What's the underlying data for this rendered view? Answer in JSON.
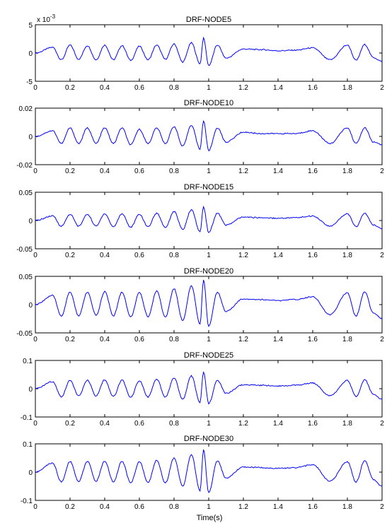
{
  "figure": {
    "xlabel": "Time(s)",
    "line_color": "#0000ff"
  },
  "chart_data": [
    {
      "type": "line",
      "title": "DRF-NODE5",
      "exponent_label": "x 10",
      "exponent_value": "-3",
      "xlim": [
        0,
        2
      ],
      "ylim": [
        -0.005,
        0.005
      ],
      "x_ticks": [
        "0",
        "0.2",
        "0.4",
        "0.6",
        "0.8",
        "1",
        "1.2",
        "1.4",
        "1.6",
        "1.8",
        "2"
      ],
      "y_ticks": [
        {
          "value": 0.005,
          "label": "5"
        },
        {
          "value": 0,
          "label": "0"
        },
        {
          "value": -0.005,
          "label": "-5"
        }
      ],
      "series": [
        {
          "x": [
            0,
            0.1,
            0.15,
            0.2,
            0.25,
            0.3,
            0.35,
            0.4,
            0.45,
            0.5,
            0.55,
            0.6,
            0.65,
            0.7,
            0.75,
            0.8,
            0.85,
            0.9,
            0.95,
            0.97,
            1.0,
            1.05,
            1.1,
            1.2,
            1.3,
            1.4,
            1.5,
            1.6,
            1.7,
            1.8,
            1.85,
            1.9,
            1.95,
            2.0
          ],
          "y": [
            0,
            0.001,
            -0.0012,
            0.0014,
            -0.0011,
            0.0013,
            -0.0012,
            0.0014,
            -0.0012,
            0.0013,
            -0.0013,
            0.0012,
            -0.0012,
            0.0014,
            -0.0011,
            0.0016,
            -0.0016,
            0.0018,
            -0.0019,
            0.0026,
            -0.0022,
            0.0014,
            -0.0009,
            0.0007,
            0.0006,
            0.0004,
            0.0005,
            0.0009,
            -0.0012,
            0.0014,
            -0.0013,
            0.0015,
            -0.0008,
            -0.0015
          ]
        }
      ]
    },
    {
      "type": "line",
      "title": "DRF-NODE10",
      "xlim": [
        0,
        2
      ],
      "ylim": [
        -0.02,
        0.02
      ],
      "x_ticks": [
        "0",
        "0.2",
        "0.4",
        "0.6",
        "0.8",
        "1",
        "1.2",
        "1.4",
        "1.6",
        "1.8",
        "2"
      ],
      "y_ticks": [
        {
          "value": 0.02,
          "label": "0.02"
        },
        {
          "value": 0,
          "label": "0"
        },
        {
          "value": -0.02,
          "label": "-0.02"
        }
      ],
      "series": [
        {
          "x": [
            0,
            0.1,
            0.15,
            0.2,
            0.25,
            0.3,
            0.35,
            0.4,
            0.45,
            0.5,
            0.55,
            0.6,
            0.65,
            0.7,
            0.75,
            0.8,
            0.85,
            0.9,
            0.95,
            0.97,
            1.0,
            1.05,
            1.1,
            1.2,
            1.3,
            1.4,
            1.5,
            1.6,
            1.7,
            1.8,
            1.85,
            1.9,
            1.95,
            2.0
          ],
          "y": [
            0,
            0.004,
            -0.005,
            0.006,
            -0.005,
            0.006,
            -0.005,
            0.006,
            -0.005,
            0.006,
            -0.006,
            0.005,
            -0.005,
            0.006,
            -0.005,
            0.007,
            -0.007,
            0.008,
            -0.009,
            0.011,
            -0.01,
            0.006,
            -0.004,
            0.003,
            0.002,
            0.002,
            0.002,
            0.004,
            -0.005,
            0.006,
            -0.005,
            0.006,
            -0.004,
            -0.006
          ]
        }
      ]
    },
    {
      "type": "line",
      "title": "DRF-NODE15",
      "xlim": [
        0,
        2
      ],
      "ylim": [
        -0.05,
        0.05
      ],
      "x_ticks": [
        "0",
        "0.2",
        "0.4",
        "0.6",
        "0.8",
        "1",
        "1.2",
        "1.4",
        "1.6",
        "1.8",
        "2"
      ],
      "y_ticks": [
        {
          "value": 0.05,
          "label": "0.05"
        },
        {
          "value": 0,
          "label": "0"
        },
        {
          "value": -0.05,
          "label": "-0.05"
        }
      ],
      "series": [
        {
          "x": [
            0,
            0.1,
            0.15,
            0.2,
            0.25,
            0.3,
            0.35,
            0.4,
            0.45,
            0.5,
            0.55,
            0.6,
            0.65,
            0.7,
            0.75,
            0.8,
            0.85,
            0.9,
            0.95,
            0.97,
            1.0,
            1.05,
            1.1,
            1.2,
            1.3,
            1.4,
            1.5,
            1.6,
            1.7,
            1.8,
            1.85,
            1.9,
            1.95,
            2.0
          ],
          "y": [
            0,
            0.008,
            -0.01,
            0.011,
            -0.01,
            0.011,
            -0.01,
            0.012,
            -0.011,
            0.012,
            -0.012,
            0.011,
            -0.011,
            0.013,
            -0.012,
            0.016,
            -0.016,
            0.019,
            -0.02,
            0.024,
            -0.021,
            0.013,
            -0.008,
            0.006,
            0.005,
            0.004,
            0.005,
            0.008,
            -0.01,
            0.012,
            -0.011,
            0.013,
            -0.008,
            -0.014
          ]
        }
      ]
    },
    {
      "type": "line",
      "title": "DRF-NODE20",
      "xlim": [
        0,
        2
      ],
      "ylim": [
        -0.05,
        0.05
      ],
      "x_ticks": [
        "0",
        "0.2",
        "0.4",
        "0.6",
        "0.8",
        "1",
        "1.2",
        "1.4",
        "1.6",
        "1.8",
        "2"
      ],
      "y_ticks": [
        {
          "value": 0.05,
          "label": "0.05"
        },
        {
          "value": 0,
          "label": "0"
        },
        {
          "value": -0.05,
          "label": "-0.05"
        }
      ],
      "series": [
        {
          "x": [
            0,
            0.1,
            0.15,
            0.2,
            0.25,
            0.3,
            0.35,
            0.4,
            0.45,
            0.5,
            0.55,
            0.6,
            0.65,
            0.7,
            0.75,
            0.8,
            0.85,
            0.9,
            0.95,
            0.97,
            1.0,
            1.05,
            1.1,
            1.2,
            1.3,
            1.4,
            1.5,
            1.6,
            1.7,
            1.8,
            1.85,
            1.9,
            1.95,
            2.0
          ],
          "y": [
            0,
            0.016,
            -0.02,
            0.022,
            -0.02,
            0.022,
            -0.019,
            0.023,
            -0.02,
            0.022,
            -0.022,
            0.021,
            -0.021,
            0.024,
            -0.022,
            0.028,
            -0.028,
            0.033,
            -0.035,
            0.043,
            -0.038,
            0.022,
            -0.012,
            0.01,
            0.009,
            0.007,
            0.009,
            0.014,
            -0.018,
            0.021,
            -0.02,
            0.023,
            -0.015,
            -0.025
          ]
        }
      ]
    },
    {
      "type": "line",
      "title": "DRF-NODE25",
      "xlim": [
        0,
        2
      ],
      "ylim": [
        -0.1,
        0.1
      ],
      "x_ticks": [
        "0",
        "0.2",
        "0.4",
        "0.6",
        "0.8",
        "1",
        "1.2",
        "1.4",
        "1.6",
        "1.8",
        "2"
      ],
      "y_ticks": [
        {
          "value": 0.1,
          "label": "0.1"
        },
        {
          "value": 0,
          "label": "0"
        },
        {
          "value": -0.1,
          "label": "-0.1"
        }
      ],
      "series": [
        {
          "x": [
            0,
            0.1,
            0.15,
            0.2,
            0.25,
            0.3,
            0.35,
            0.4,
            0.45,
            0.5,
            0.55,
            0.6,
            0.65,
            0.7,
            0.75,
            0.8,
            0.85,
            0.9,
            0.95,
            0.97,
            1.0,
            1.05,
            1.1,
            1.2,
            1.3,
            1.4,
            1.5,
            1.6,
            1.7,
            1.8,
            1.85,
            1.9,
            1.95,
            2.0
          ],
          "y": [
            0,
            0.025,
            -0.028,
            0.03,
            -0.026,
            0.03,
            -0.026,
            0.031,
            -0.027,
            0.03,
            -0.03,
            0.029,
            -0.029,
            0.033,
            -0.03,
            0.038,
            -0.038,
            0.045,
            -0.048,
            0.058,
            -0.052,
            0.03,
            -0.016,
            0.014,
            0.012,
            0.01,
            0.012,
            0.02,
            -0.025,
            0.029,
            -0.027,
            0.032,
            -0.02,
            -0.038
          ]
        }
      ]
    },
    {
      "type": "line",
      "title": "DRF-NODE30",
      "xlim": [
        0,
        2
      ],
      "ylim": [
        -0.1,
        0.1
      ],
      "x_ticks": [
        "0",
        "0.2",
        "0.4",
        "0.6",
        "0.8",
        "1",
        "1.2",
        "1.4",
        "1.6",
        "1.8",
        "2"
      ],
      "y_ticks": [
        {
          "value": 0.1,
          "label": "0.1"
        },
        {
          "value": 0,
          "label": "0"
        },
        {
          "value": -0.1,
          "label": "-0.1"
        }
      ],
      "series": [
        {
          "x": [
            0,
            0.1,
            0.15,
            0.2,
            0.25,
            0.3,
            0.35,
            0.4,
            0.45,
            0.5,
            0.55,
            0.6,
            0.65,
            0.7,
            0.75,
            0.8,
            0.85,
            0.9,
            0.95,
            0.97,
            1.0,
            1.05,
            1.1,
            1.2,
            1.3,
            1.4,
            1.5,
            1.6,
            1.7,
            1.8,
            1.85,
            1.9,
            1.95,
            2.0
          ],
          "y": [
            0,
            0.032,
            -0.035,
            0.038,
            -0.033,
            0.038,
            -0.032,
            0.039,
            -0.034,
            0.038,
            -0.038,
            0.037,
            -0.037,
            0.042,
            -0.038,
            0.05,
            -0.05,
            0.062,
            -0.066,
            0.078,
            -0.072,
            0.04,
            -0.022,
            0.018,
            0.016,
            0.013,
            0.016,
            0.026,
            -0.032,
            0.037,
            -0.035,
            0.041,
            -0.026,
            -0.05
          ]
        }
      ]
    }
  ]
}
